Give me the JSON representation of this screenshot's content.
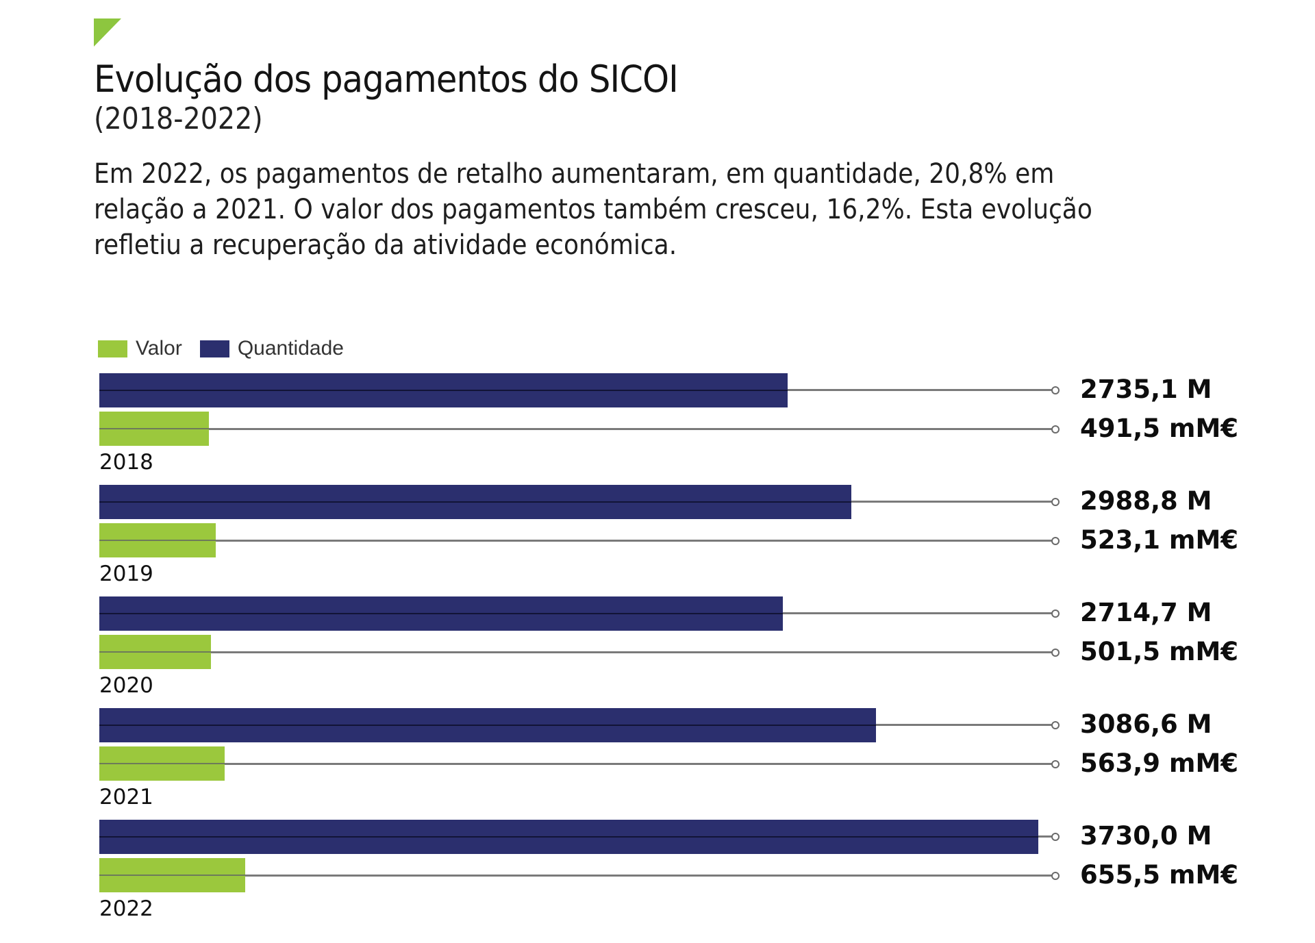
{
  "header": {
    "title": "Evolução dos pagamentos do SICOI",
    "subtitle": "(2018-2022)",
    "description": "Em 2022, os pagamentos de retalho aumentaram, em quantidade, 20,8% em relação a 2021. O valor dos pagamentos também cresceu, 16,2%. Esta evolução refletiu a recuperação da atividade económica."
  },
  "legend": [
    {
      "label": "Valor",
      "color": "#9bc83d"
    },
    {
      "label": "Quantidade",
      "color": "#2b2f6e"
    }
  ],
  "colors": {
    "accent": "#8dc63f",
    "navy": "#2b2f6e",
    "green": "#9bc83d"
  },
  "groups": [
    {
      "year": "2018",
      "quantidade_label": "2735,1 M",
      "valor_label": "491,5 mM€"
    },
    {
      "year": "2019",
      "quantidade_label": "2988,8 M",
      "valor_label": "523,1 mM€"
    },
    {
      "year": "2020",
      "quantidade_label": "2714,7 M",
      "valor_label": "501,5 mM€"
    },
    {
      "year": "2021",
      "quantidade_label": "3086,6 M",
      "valor_label": "563,9 mM€"
    },
    {
      "year": "2022",
      "quantidade_label": "3730,0 M",
      "valor_label": "655,5 mM€"
    }
  ],
  "chart_data": {
    "type": "bar",
    "orientation": "horizontal",
    "title": "Evolução dos pagamentos do SICOI",
    "subtitle": "(2018-2022)",
    "categories": [
      "2018",
      "2019",
      "2020",
      "2021",
      "2022"
    ],
    "series": [
      {
        "name": "Quantidade",
        "unit": "M",
        "color": "#2b2f6e",
        "values": [
          2735.1,
          2988.8,
          2714.7,
          3086.6,
          3730.0
        ]
      },
      {
        "name": "Valor",
        "unit": "mM€",
        "color": "#9bc83d",
        "values": [
          491.5,
          523.1,
          501.5,
          563.9,
          655.5
        ]
      }
    ],
    "xlabel": "",
    "ylabel": "",
    "grid": false,
    "legend_position": "top-left"
  }
}
